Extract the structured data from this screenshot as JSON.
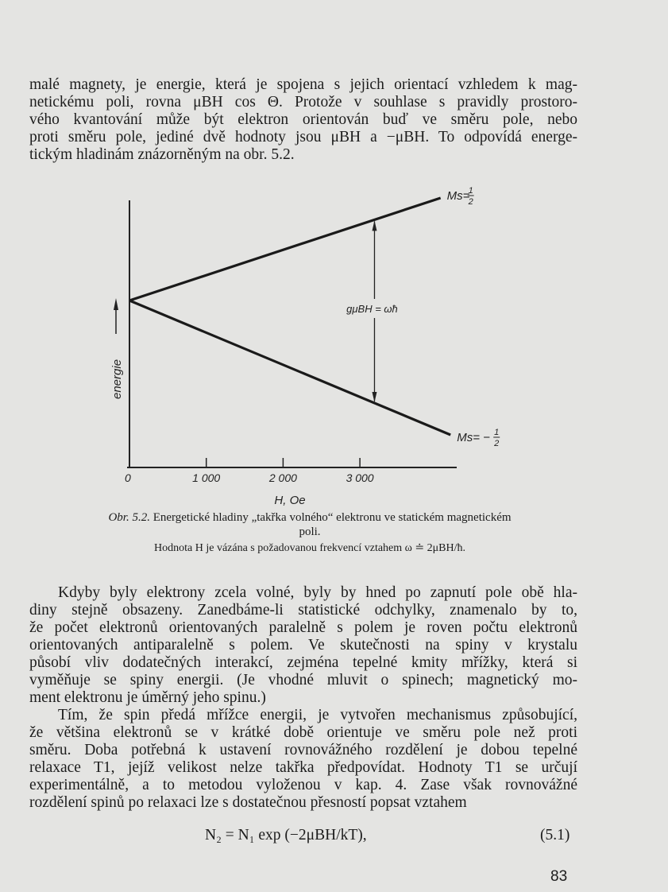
{
  "paragraph1": [
    "malé magnety, je energie, která je spojena s jejich orientací vzhledem k mag-",
    "netickému poli, rovna μBH cos Θ. Protože v souhlase s pravidly prostoro-",
    "vého kvantování může být elektron orientován buď ve směru pole, nebo",
    "proti směru pole, jediné dvě hodnoty jsou μBH a −μBH. To odpovídá energe-",
    "tickým hladinám znázorněným na obr. 5.2."
  ],
  "figure": {
    "caption_label": "Obr. 5.2.",
    "caption_line1": "Energetické hladiny „takřka volného“ elektronu ve statickém magnetickém",
    "caption_line2": "poli.",
    "caption_line3": "Hodnota H je vázána s požadovanou frekvencí vztahem ω ≐ 2μBH/ħ."
  },
  "chart_data": {
    "type": "line",
    "xlabel": "H, Oe",
    "ylabel": "energie",
    "x_ticks": [
      "0",
      "1 000",
      "2 000",
      "3 000"
    ],
    "x_tick_values": [
      0,
      1000,
      2000,
      3000
    ],
    "xlim": [
      0,
      4300
    ],
    "grid": false,
    "series": [
      {
        "name": "Ms = 1/2",
        "label_main": "Ms=",
        "label_frac": "1/2",
        "x": [
          0,
          4050
        ],
        "y": [
          0,
          1.0
        ]
      },
      {
        "name": "Ms = −1/2",
        "label_main": "Ms= −",
        "label_frac": "1/2",
        "x": [
          0,
          4180
        ],
        "y": [
          0,
          -1.3
        ]
      }
    ],
    "annotation": {
      "text": "gμBH = ωħ",
      "x": 3190
    }
  },
  "paragraph2": [
    "Kdyby byly elektrony zcela volné, byly by hned po zapnutí pole obě hla-",
    "diny stejně obsazeny. Zanedbáme-li statistické odchylky, znamenalo by to,",
    "že počet elektronů orientovaných paralelně s polem je roven počtu elektronů",
    "orientovaných antiparalelně s polem. Ve skutečnosti na spiny v krystalu",
    "působí vliv dodatečných interakcí, zejména tepelné kmity mřížky, která si",
    "vyměňuje se spiny energii. (Je vhodné mluvit o spinech; magnetický mo-",
    "ment elektronu je úměrný jeho spinu.)"
  ],
  "paragraph3": [
    "Tím, že spin předá mřížce energii, je vytvořen mechanismus způsobující,",
    "že většina elektronů se v krátké době orientuje ve směru pole než proti",
    "směru. Doba potřebná k ustavení rovnovážného rozdělení je dobou tepelné",
    "relaxace T1, jejíž velikost nelze takřka předpovídat. Hodnoty T1 se určují",
    "experimentálně, a to metodou vyloženou v kap. 4. Zase však rovnovážné",
    "rozdělení spinů po relaxaci lze s dostatečnou přesností popsat vztahem"
  ],
  "equation": {
    "text": "N₂ = N₁ exp (−2μBH/kT),",
    "number": "(5.1)"
  },
  "page_number": "83"
}
